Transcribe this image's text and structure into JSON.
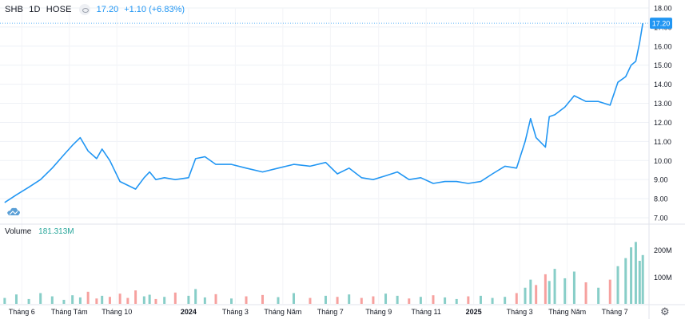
{
  "header": {
    "symbol": "SHB",
    "interval": "1D",
    "exchange": "HOSE",
    "last_price": "17.20",
    "change": "+1.10 (+6.83%)"
  },
  "volume_legend": {
    "label": "Volume",
    "value": "181.313M"
  },
  "icons": {
    "visibility": "eye-icon",
    "logo": "cloud-icon",
    "settings": "gear-icon"
  },
  "colors": {
    "line": "#2196f3",
    "up_volume": "#26a69a",
    "down_volume": "#ef5350",
    "badge": "#2196f3",
    "grid": "#eef1f6"
  },
  "chart_data": [
    {
      "type": "line",
      "title": "SHB 1D HOSE",
      "ylim": [
        7.0,
        18.0
      ],
      "y_ticks": [
        "7.00",
        "8.00",
        "9.00",
        "10.00",
        "11.00",
        "12.00",
        "13.00",
        "14.00",
        "15.00",
        "16.00",
        "17.00",
        "18.00"
      ],
      "last_value_badge": "17.20",
      "x_ticks": [
        "Tháng 6",
        "Tháng Tám",
        "Tháng 10",
        "2024",
        "Tháng 3",
        "Tháng Năm",
        "Tháng 7",
        "Tháng 9",
        "Tháng 11",
        "2025",
        "Tháng 3",
        "Tháng Năm",
        "Tháng 7"
      ],
      "series": [
        {
          "x": [
            "2023-05-10",
            "2023-05-25",
            "2023-06-10",
            "2023-06-25",
            "2023-07-10",
            "2023-07-25",
            "2023-08-05",
            "2023-08-15",
            "2023-08-25",
            "2023-09-05",
            "2023-09-12",
            "2023-09-22",
            "2023-10-05",
            "2023-10-15",
            "2023-10-25",
            "2023-11-05",
            "2023-11-12",
            "2023-11-20",
            "2023-12-01",
            "2023-12-15",
            "2024-01-01",
            "2024-01-10",
            "2024-01-22",
            "2024-02-05",
            "2024-02-25",
            "2024-03-15",
            "2024-04-05",
            "2024-04-25",
            "2024-05-15",
            "2024-06-05",
            "2024-06-25",
            "2024-07-10",
            "2024-07-25",
            "2024-08-10",
            "2024-08-25",
            "2024-09-10",
            "2024-09-25",
            "2024-10-10",
            "2024-10-25",
            "2024-11-10",
            "2024-11-25",
            "2024-12-10",
            "2024-12-25",
            "2025-01-10",
            "2025-01-25",
            "2025-02-10",
            "2025-02-25",
            "2025-03-08",
            "2025-03-15",
            "2025-03-22",
            "2025-04-03",
            "2025-04-08",
            "2025-04-15",
            "2025-04-28",
            "2025-05-10",
            "2025-05-25",
            "2025-06-10",
            "2025-06-25",
            "2025-07-05",
            "2025-07-15",
            "2025-07-22",
            "2025-07-28",
            "2025-08-02",
            "2025-08-06"
          ],
          "values": [
            7.8,
            8.2,
            8.6,
            9.0,
            9.6,
            10.3,
            10.8,
            11.2,
            10.5,
            10.1,
            10.6,
            10.0,
            8.9,
            8.7,
            8.5,
            9.1,
            9.4,
            9.0,
            9.1,
            9.0,
            9.1,
            10.1,
            10.2,
            9.8,
            9.8,
            9.6,
            9.4,
            9.6,
            9.8,
            9.7,
            9.9,
            9.3,
            9.6,
            9.1,
            9.0,
            9.2,
            9.4,
            9.0,
            9.1,
            8.8,
            8.9,
            8.9,
            8.8,
            8.9,
            9.3,
            9.7,
            9.6,
            11.0,
            12.2,
            11.2,
            10.7,
            12.3,
            12.4,
            12.8,
            13.4,
            13.1,
            13.1,
            12.9,
            14.1,
            14.4,
            15.0,
            15.2,
            16.2,
            17.2
          ]
        }
      ]
    },
    {
      "type": "bar",
      "title": "Volume",
      "y_ticks": [
        "100M",
        "200M"
      ],
      "values_m": [
        22,
        35,
        18,
        40,
        28,
        15,
        32,
        24,
        45,
        20,
        30,
        26,
        38,
        22,
        50,
        28,
        34,
        18,
        26,
        42,
        30,
        55,
        24,
        36,
        20,
        28,
        33,
        25,
        40,
        22,
        30,
        26,
        35,
        22,
        28,
        38,
        30,
        20,
        26,
        32,
        24,
        18,
        28,
        30,
        22,
        26,
        40,
        60,
        90,
        70,
        110,
        85,
        130,
        95,
        120,
        80,
        60,
        90,
        140,
        170,
        210,
        230,
        160,
        181.313
      ]
    }
  ]
}
